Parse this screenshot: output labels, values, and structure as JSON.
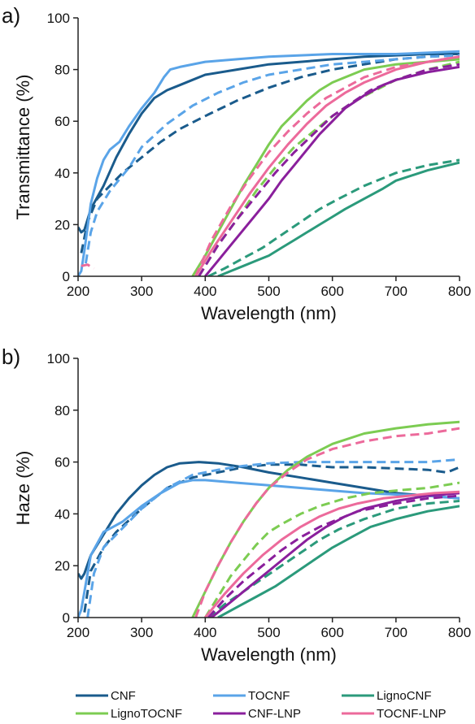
{
  "chart_data": [
    {
      "panel_label": "a)",
      "type": "line",
      "xlabel": "Wavelength (nm)",
      "ylabel": "Transmittance (%)",
      "xlim": [
        200,
        800
      ],
      "ylim": [
        0,
        100
      ],
      "xticks": [
        200,
        300,
        400,
        500,
        600,
        700,
        800
      ],
      "yticks": [
        0,
        20,
        40,
        60,
        80,
        100
      ],
      "grid": false,
      "series": [
        {
          "name": "CNF",
          "style": "solid",
          "color": "#1a5b8c",
          "x": [
            200,
            205,
            210,
            220,
            240,
            260,
            280,
            300,
            320,
            340,
            360,
            380,
            400,
            450,
            500,
            550,
            600,
            650,
            700,
            750,
            800
          ],
          "y": [
            19,
            17,
            18,
            26,
            35,
            46,
            55,
            63,
            69,
            72,
            74,
            76,
            78,
            80,
            82,
            83,
            84,
            85,
            85.5,
            86,
            86
          ]
        },
        {
          "name": "CNF",
          "style": "dashed",
          "color": "#1a5b8c",
          "x": [
            205,
            215,
            230,
            250,
            270,
            300,
            330,
            360,
            400,
            450,
            500,
            550,
            600,
            650,
            700,
            750,
            800
          ],
          "y": [
            9,
            21,
            30,
            35,
            40,
            46,
            52,
            57,
            62,
            68,
            73,
            77,
            80,
            82,
            84,
            85,
            85.5
          ]
        },
        {
          "name": "TOCNF",
          "style": "solid",
          "color": "#5aa4e8",
          "x": [
            200,
            205,
            210,
            220,
            230,
            240,
            250,
            265,
            280,
            300,
            320,
            335,
            345,
            360,
            400,
            450,
            500,
            600,
            700,
            800
          ],
          "y": [
            0,
            2,
            10,
            28,
            38,
            45,
            49,
            52,
            58,
            65,
            71,
            77,
            80,
            81,
            83,
            84,
            85,
            86,
            86,
            87
          ]
        },
        {
          "name": "TOCNF",
          "style": "dashed",
          "color": "#5aa4e8",
          "x": [
            212,
            220,
            230,
            250,
            280,
            300,
            340,
            380,
            420,
            460,
            500,
            550,
            600,
            650,
            700,
            750,
            800
          ],
          "y": [
            5,
            17,
            25,
            33,
            42,
            50,
            59,
            66,
            71,
            75,
            78,
            80,
            82,
            83,
            84,
            85,
            85.5
          ]
        },
        {
          "name": "LignoCNF",
          "style": "solid",
          "color": "#2b9a7b",
          "x": [
            420,
            440,
            460,
            480,
            500,
            520,
            540,
            560,
            580,
            600,
            620,
            650,
            680,
            700,
            750,
            800
          ],
          "y": [
            0,
            2,
            4,
            6,
            8,
            11,
            14,
            17,
            20,
            23,
            26,
            30,
            34,
            37,
            41,
            44
          ]
        },
        {
          "name": "LignoCNF",
          "style": "dashed",
          "color": "#2b9a7b",
          "x": [
            405,
            430,
            460,
            490,
            520,
            550,
            580,
            610,
            650,
            700,
            750,
            800
          ],
          "y": [
            0,
            3,
            7,
            11,
            16,
            21,
            26,
            30,
            35,
            40,
            43,
            45
          ]
        },
        {
          "name": "LignoTOCNF",
          "style": "solid",
          "color": "#7ccc52",
          "x": [
            380,
            400,
            420,
            440,
            460,
            480,
            500,
            520,
            540,
            560,
            580,
            600,
            620,
            650,
            700,
            750,
            800
          ],
          "y": [
            0,
            8,
            17,
            26,
            35,
            43,
            51,
            58,
            63,
            68,
            72,
            75,
            77,
            80,
            82,
            83,
            84
          ]
        },
        {
          "name": "LignoTOCNF",
          "style": "dashed",
          "color": "#7ccc52",
          "x": [
            390,
            420,
            450,
            480,
            510,
            540,
            570,
            600,
            630,
            660,
            700,
            750,
            800
          ],
          "y": [
            0,
            12,
            22,
            33,
            42,
            50,
            56,
            62,
            67,
            71,
            76,
            80,
            83
          ]
        },
        {
          "name": "CNF-LNP",
          "style": "solid",
          "color": "#8a1f9c",
          "x": [
            400,
            420,
            440,
            460,
            480,
            500,
            520,
            540,
            560,
            580,
            600,
            620,
            650,
            680,
            700,
            750,
            800
          ],
          "y": [
            0,
            6,
            12,
            18,
            24,
            30,
            37,
            43,
            49,
            55,
            60,
            65,
            70,
            74,
            76,
            79,
            81
          ]
        },
        {
          "name": "CNF-LNP",
          "style": "dashed",
          "color": "#8a1f9c",
          "x": [
            390,
            420,
            450,
            480,
            510,
            540,
            570,
            600,
            630,
            660,
            700,
            750,
            800
          ],
          "y": [
            0,
            12,
            22,
            31,
            40,
            48,
            55,
            62,
            67,
            72,
            76,
            80,
            82
          ]
        },
        {
          "name": "TOCNF-LNP",
          "style": "solid",
          "color": "#ec6a9b",
          "x": [
            385,
            410,
            440,
            470,
            500,
            530,
            560,
            590,
            620,
            650,
            700,
            750,
            800
          ],
          "y": [
            0,
            10,
            21,
            32,
            42,
            51,
            59,
            66,
            71,
            75,
            80,
            83,
            85
          ]
        },
        {
          "name": "TOCNF-LNP",
          "style": "dashed",
          "color": "#ec6a9b",
          "x": [
            385,
            410,
            440,
            470,
            500,
            530,
            560,
            590,
            620,
            650,
            700,
            750,
            800
          ],
          "y": [
            0,
            14,
            27,
            38,
            48,
            56,
            63,
            69,
            73,
            77,
            81,
            83,
            85
          ]
        },
        {
          "name": "TOCNF-LNP",
          "style": "dashed",
          "color": "#ec6a9b",
          "x": [
            205,
            215,
            225
          ],
          "y": [
            4,
            4.5,
            3
          ]
        }
      ]
    },
    {
      "panel_label": "b)",
      "type": "line",
      "xlabel": "Wavelength (nm)",
      "ylabel": "Haze (%)",
      "xlim": [
        200,
        800
      ],
      "ylim": [
        0,
        100
      ],
      "xticks": [
        200,
        300,
        400,
        500,
        600,
        700,
        800
      ],
      "yticks": [
        0,
        20,
        40,
        60,
        80,
        100
      ],
      "grid": false,
      "series": [
        {
          "name": "CNF",
          "style": "solid",
          "color": "#1a5b8c",
          "x": [
            200,
            205,
            210,
            220,
            240,
            260,
            280,
            300,
            320,
            340,
            360,
            390,
            420,
            460,
            500,
            550,
            600,
            650,
            700,
            750,
            800
          ],
          "y": [
            17,
            15,
            17,
            24,
            32,
            40,
            46,
            51,
            55,
            58,
            59.5,
            60,
            59.5,
            58,
            56,
            54,
            52,
            50,
            48,
            47,
            46
          ]
        },
        {
          "name": "CNF",
          "style": "dashed",
          "color": "#1a5b8c",
          "x": [
            210,
            220,
            240,
            260,
            300,
            340,
            380,
            420,
            460,
            500,
            550,
            600,
            650,
            700,
            750,
            780,
            800
          ],
          "y": [
            2,
            18,
            27,
            33,
            42,
            50,
            54,
            56,
            58,
            59,
            59,
            58,
            58,
            57.5,
            57,
            56,
            58
          ]
        },
        {
          "name": "TOCNF",
          "style": "solid",
          "color": "#5aa4e8",
          "x": [
            200,
            205,
            210,
            220,
            240,
            255,
            270,
            300,
            330,
            360,
            380,
            400,
            450,
            500,
            550,
            600,
            650,
            700,
            750,
            800
          ],
          "y": [
            0,
            3,
            10,
            24,
            33,
            35,
            37,
            43,
            48,
            52,
            53,
            53,
            52,
            51,
            50,
            49,
            48,
            47.5,
            47,
            46
          ]
        },
        {
          "name": "TOCNF",
          "style": "dashed",
          "color": "#5aa4e8",
          "x": [
            215,
            225,
            240,
            260,
            300,
            340,
            380,
            420,
            460,
            500,
            550,
            600,
            650,
            700,
            750,
            800
          ],
          "y": [
            0,
            17,
            27,
            32,
            42,
            50,
            55,
            57,
            58.5,
            59.5,
            60,
            60,
            60,
            60,
            60,
            61
          ]
        },
        {
          "name": "LignoCNF",
          "style": "solid",
          "color": "#2b9a7b",
          "x": [
            420,
            450,
            480,
            510,
            540,
            570,
            600,
            630,
            660,
            700,
            750,
            800
          ],
          "y": [
            0,
            4,
            8,
            12,
            17,
            22,
            27,
            31,
            35,
            38,
            41,
            43
          ]
        },
        {
          "name": "LignoCNF",
          "style": "dashed",
          "color": "#2b9a7b",
          "x": [
            405,
            430,
            460,
            490,
            520,
            550,
            580,
            610,
            650,
            700,
            750,
            800
          ],
          "y": [
            0,
            5,
            10,
            15,
            20,
            25,
            30,
            34,
            38,
            42,
            44,
            45
          ]
        },
        {
          "name": "LignoTOCNF",
          "style": "solid",
          "color": "#7ccc52",
          "x": [
            380,
            400,
            420,
            440,
            460,
            480,
            500,
            530,
            560,
            600,
            650,
            700,
            750,
            800
          ],
          "y": [
            0,
            10,
            20,
            29,
            37,
            44,
            50,
            57,
            62,
            67,
            71,
            73,
            74.5,
            75.5
          ]
        },
        {
          "name": "LignoTOCNF",
          "style": "dashed",
          "color": "#7ccc52",
          "x": [
            400,
            420,
            440,
            460,
            480,
            500,
            520,
            550,
            580,
            620,
            660,
            700,
            750,
            800
          ],
          "y": [
            0,
            8,
            16,
            22,
            28,
            33,
            36,
            40,
            43,
            46,
            48,
            49,
            50,
            52
          ]
        },
        {
          "name": "CNF-LNP",
          "style": "solid",
          "color": "#8a1f9c",
          "x": [
            410,
            440,
            470,
            500,
            530,
            560,
            590,
            620,
            650,
            700,
            750,
            800
          ],
          "y": [
            0,
            6,
            12,
            18,
            24,
            30,
            35,
            39,
            42,
            45,
            47,
            48
          ]
        },
        {
          "name": "CNF-LNP",
          "style": "dashed",
          "color": "#8a1f9c",
          "x": [
            405,
            430,
            460,
            490,
            520,
            550,
            580,
            610,
            640,
            700,
            750,
            800
          ],
          "y": [
            0,
            7,
            14,
            20,
            26,
            31,
            35,
            38,
            41,
            44,
            46,
            47
          ]
        },
        {
          "name": "TOCNF-LNP",
          "style": "solid",
          "color": "#ec6a9b",
          "x": [
            400,
            430,
            460,
            490,
            520,
            550,
            580,
            610,
            640,
            680,
            720,
            760,
            800
          ],
          "y": [
            0,
            9,
            17,
            24,
            30,
            35,
            39,
            42,
            44,
            46,
            47,
            48,
            48.5
          ]
        },
        {
          "name": "TOCNF-LNP",
          "style": "dashed",
          "color": "#ec6a9b",
          "x": [
            385,
            400,
            420,
            440,
            460,
            480,
            500,
            530,
            560,
            600,
            650,
            700,
            750,
            800
          ],
          "y": [
            0,
            10,
            20,
            29,
            37,
            44,
            50,
            56,
            61,
            65,
            68,
            70,
            71,
            73
          ]
        }
      ]
    }
  ],
  "legend": {
    "placement": "bottom",
    "entries": [
      {
        "name": "CNF",
        "color": "#1a5b8c"
      },
      {
        "name": "TOCNF",
        "color": "#5aa4e8"
      },
      {
        "name": "LignoCNF",
        "color": "#2b9a7b"
      },
      {
        "name": "LignoTOCNF",
        "color": "#7ccc52"
      },
      {
        "name": "CNF-LNP",
        "color": "#8a1f9c"
      },
      {
        "name": "TOCNF-LNP",
        "color": "#ec6a9b"
      }
    ]
  }
}
